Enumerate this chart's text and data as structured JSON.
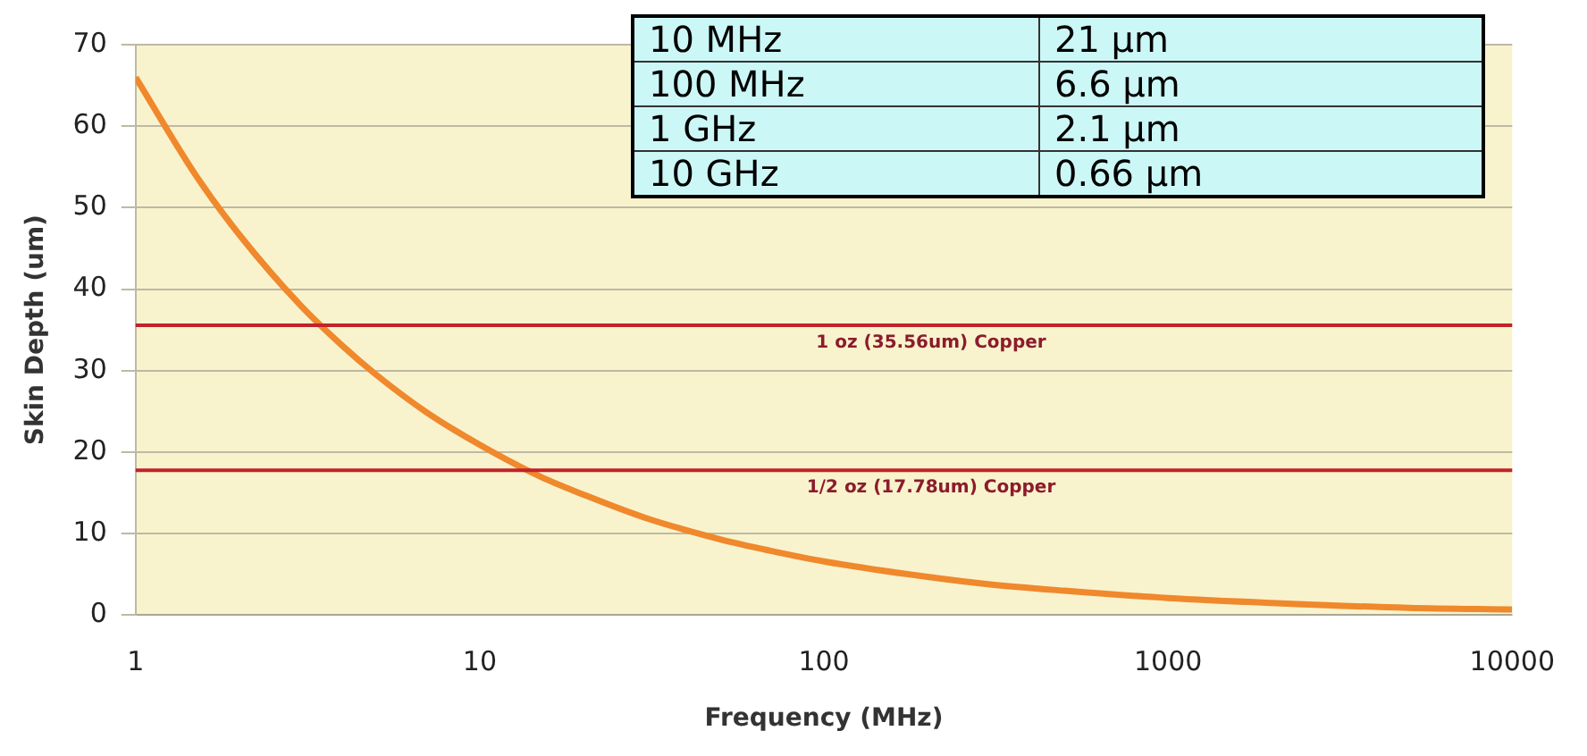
{
  "chart_data": {
    "type": "line",
    "xlabel": "Frequency (MHz)",
    "ylabel": "Skin Depth (um)",
    "x": [
      1,
      1.5,
      2,
      3,
      4,
      5,
      7,
      10,
      15,
      20,
      30,
      50,
      70,
      100,
      200,
      300,
      500,
      1000,
      2000,
      5000,
      10000
    ],
    "series": [
      {
        "color": "#f0882c",
        "values": [
          66,
          53.9,
          46.7,
          38.1,
          33,
          29.5,
          24.9,
          20.9,
          17,
          14.8,
          12,
          9.3,
          7.9,
          6.6,
          4.7,
          3.8,
          3,
          2.1,
          1.5,
          0.9,
          0.7
        ]
      }
    ],
    "log": "x",
    "xlim": [
      1,
      10000
    ],
    "xticks": [
      1,
      10,
      100,
      1000,
      10000
    ],
    "ylim": [
      0,
      70
    ],
    "yticks": [
      0,
      10,
      20,
      30,
      40,
      50,
      60,
      70
    ],
    "grid": "y",
    "marker": "none",
    "line_style": "solid",
    "legend": false,
    "ref_lines": [
      {
        "axis": "y",
        "value": 35.56,
        "label": "1 oz (35.56um) Copper",
        "color": "#c0232a"
      },
      {
        "axis": "y",
        "value": 17.78,
        "label": "1/2 oz (17.78um) Copper",
        "color": "#c0232a"
      }
    ],
    "annotations": [
      "10 MHz",
      "21 µm",
      "100 MHz",
      "6.6 µm",
      "1 GHz",
      "2.1 µm",
      "10 GHz",
      "0.66 µm"
    ]
  }
}
